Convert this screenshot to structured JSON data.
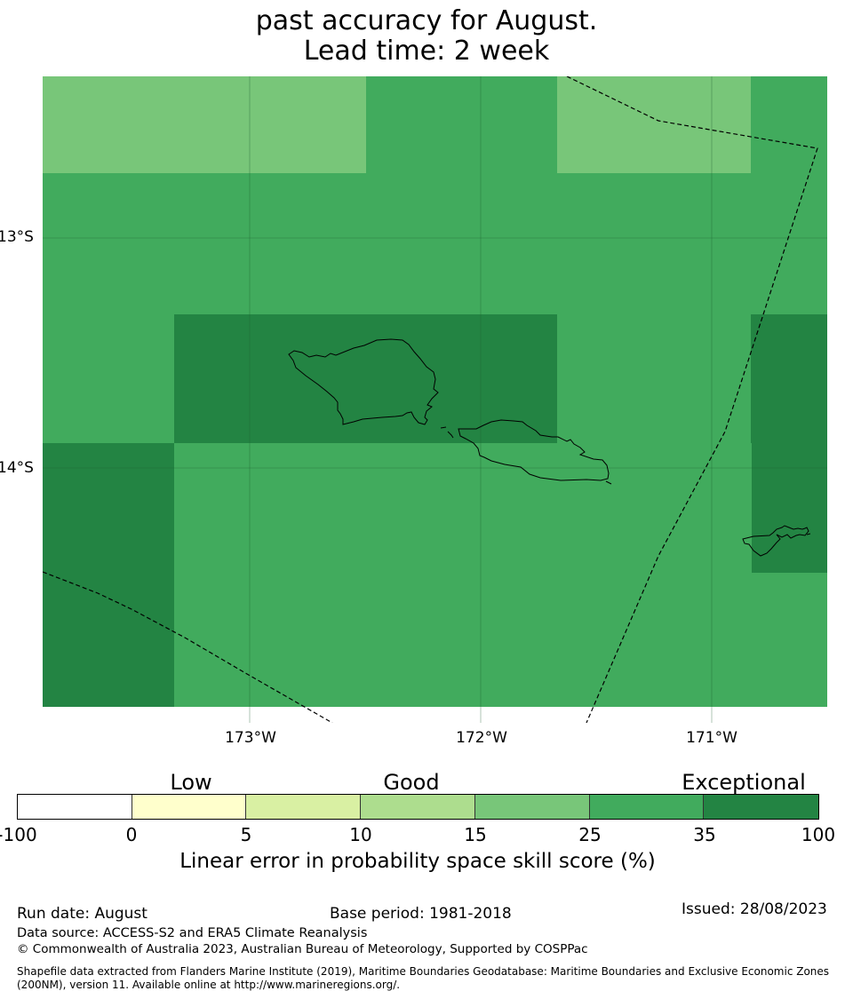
{
  "header": {
    "title_line1": "past accuracy for August.",
    "title_line2": "Lead time: 2 week"
  },
  "map": {
    "cells": [
      {
        "lon": [
          -173.9,
          -172.5
        ],
        "lat": [
          -12.23,
          -12.72
        ],
        "cls": 25
      },
      {
        "lon": [
          -172.5,
          -171.67
        ],
        "lat": [
          -12.23,
          -12.72
        ],
        "cls": 35
      },
      {
        "lon": [
          -171.67,
          -170.83
        ],
        "lat": [
          -12.23,
          -12.72
        ],
        "cls": 25
      },
      {
        "lon": [
          -170.83,
          -170.5
        ],
        "lat": [
          -12.23,
          -12.72
        ],
        "cls": 35
      },
      {
        "lon": [
          -173.9,
          -170.5
        ],
        "lat": [
          -12.72,
          -13.33
        ],
        "cls": 35
      },
      {
        "lon": [
          -173.9,
          -173.33
        ],
        "lat": [
          -13.33,
          -13.89
        ],
        "cls": 35
      },
      {
        "lon": [
          -173.33,
          -171.67
        ],
        "lat": [
          -13.33,
          -13.89
        ],
        "cls": 100
      },
      {
        "lon": [
          -171.67,
          -170.83
        ],
        "lat": [
          -13.33,
          -13.89
        ],
        "cls": 35
      },
      {
        "lon": [
          -170.83,
          -170.5
        ],
        "lat": [
          -13.33,
          -14.45
        ],
        "cls": 100
      },
      {
        "lon": [
          -173.9,
          -173.33
        ],
        "lat": [
          -13.89,
          -15.03
        ],
        "cls": 100
      },
      {
        "lon": [
          -173.33,
          -170.83
        ],
        "lat": [
          -13.89,
          -15.03
        ],
        "cls": 35
      },
      {
        "lon": [
          -170.83,
          -170.5
        ],
        "lat": [
          -14.45,
          -15.03
        ],
        "cls": 35
      }
    ],
    "meridians": [
      -173,
      -172,
      -171
    ],
    "parallels": [
      -13,
      -14
    ]
  },
  "axes": {
    "lat_labels": [
      "13°S",
      "14°S"
    ],
    "lon_labels": [
      "173°W",
      "172°W",
      "171°W"
    ]
  },
  "colorbar": {
    "categories": [
      "Low",
      "Good",
      "Exceptional"
    ],
    "ticks": [
      "-100",
      "0",
      "5",
      "10",
      "15",
      "25",
      "35",
      "100"
    ],
    "colors": [
      "#ffffff",
      "#ffffcc",
      "#d9f0a3",
      "#addd8e",
      "#78c679",
      "#41ab5d",
      "#238443"
    ],
    "label": "Linear error in probability space skill score (%)"
  },
  "footer": {
    "run_date": "Run date: August",
    "base_period": "Base period: 1981-2018",
    "issued": "Issued: 28/08/2023",
    "data_source": "Data source: ACCESS-S2 and ERA5 Climate Reanalysis",
    "copyright": "© Commonwealth of Australia 2023, Australian Bureau of Meteorology, Supported by COSPPac",
    "shapefile_line1": "Shapefile data extracted from Flanders Marine Institute (2019), Maritime Boundaries Geodatabase: Maritime Boundaries and Exclusive Economic Zones",
    "shapefile_line2": "(200NM), version 11. Available online at http://www.marineregions.org/."
  }
}
